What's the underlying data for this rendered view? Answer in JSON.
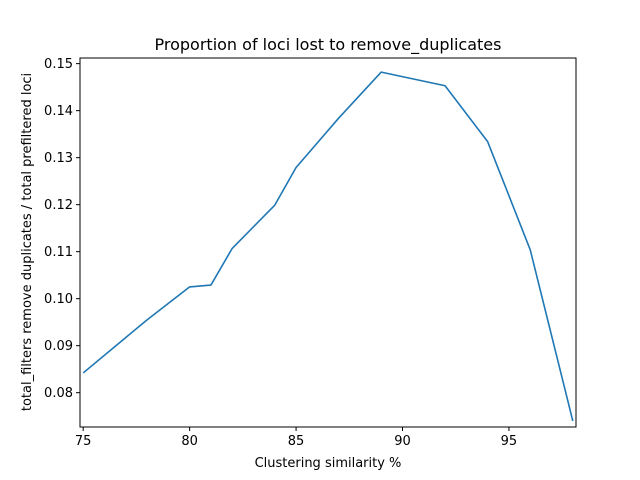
{
  "chart_data": {
    "type": "line",
    "title": "Proportion of loci lost to remove_duplicates",
    "xlabel": "Clustering similarity %",
    "ylabel": "total_filters remove duplicates / total prefiltered loci",
    "xlim": [
      74.85,
      98.15
    ],
    "ylim": [
      0.0727,
      0.1512
    ],
    "xticks": [
      75,
      80,
      85,
      90,
      95
    ],
    "yticks": [
      0.08,
      0.09,
      0.1,
      0.11,
      0.12,
      0.13,
      0.14,
      0.15
    ],
    "xtick_labels": [
      "75",
      "80",
      "85",
      "90",
      "95"
    ],
    "ytick_labels": [
      "0.08",
      "0.09",
      "0.10",
      "0.11",
      "0.12",
      "0.13",
      "0.14",
      "0.15"
    ],
    "grid": false,
    "series": [
      {
        "color": "#1f77b4",
        "x": [
          75,
          78,
          80,
          81,
          82,
          84,
          85,
          87,
          89,
          92,
          94,
          96,
          98
        ],
        "y": [
          0.0842,
          0.0955,
          0.1025,
          0.1029,
          0.1107,
          0.1199,
          0.1279,
          0.1384,
          0.1482,
          0.1453,
          0.1334,
          0.1104,
          0.074
        ]
      }
    ]
  }
}
